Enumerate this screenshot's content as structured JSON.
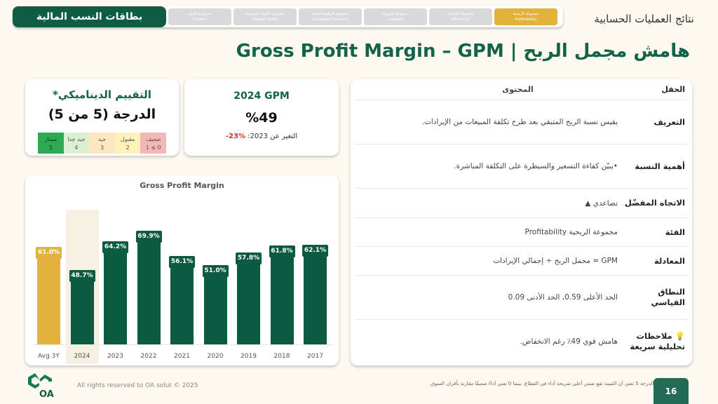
{
  "header": {
    "brand_label": "بطاقات النسب المالية",
    "section_label": "نتائج العمليات الحسابية",
    "tabs": [
      {
        "ar": "مجموعة النمو",
        "en": "Growth",
        "active": false
      },
      {
        "ar": "مجموعة القيمة السوقية",
        "en": "Market Value",
        "active": false
      },
      {
        "ar": "مجموعة الرافعة المالية",
        "en": "Leverage Financial",
        "active": false
      },
      {
        "ar": "مجموعة السيولة",
        "en": "Liquidity",
        "active": false
      },
      {
        "ar": "مجموعة الكفاءة",
        "en": "Efficiency",
        "active": false
      },
      {
        "ar": "مجموعة الربحية",
        "en": "Profitability",
        "active": true
      }
    ]
  },
  "page_title": "هامش مجمل الربح | Gross Profit Margin – GPM",
  "rating_card": {
    "title": "التقييم الديناميكي*",
    "score": "الدرجة (5 من 5)",
    "scale": [
      {
        "label": "ضعيف",
        "value": "0 ≥ 1",
        "color": "#f4b7b7"
      },
      {
        "label": "مقبول",
        "value": "2",
        "color": "#fdf3b8"
      },
      {
        "label": "جيد",
        "value": "3",
        "color": "#fde6c2"
      },
      {
        "label": "جيد جدا",
        "value": "4",
        "color": "#dcefd3"
      },
      {
        "label": "ممتاز",
        "value": "5",
        "color": "#2eaa55"
      }
    ]
  },
  "gpm_card": {
    "title": "2024 GPM",
    "value": "%49",
    "change_label": "التغير عن 2023:",
    "change_value": "-23%"
  },
  "chart_data": {
    "type": "bar",
    "title": "Gross Profit Margin",
    "categories": [
      "Avg 3Y",
      "2024",
      "2023",
      "2022",
      "2021",
      "2020",
      "2019",
      "2018",
      "2017"
    ],
    "values": [
      61.0,
      48.7,
      64.2,
      69.9,
      56.1,
      51.0,
      57.8,
      61.8,
      62.1
    ],
    "labels": [
      "61.0%",
      "48.7%",
      "64.2%",
      "69.9%",
      "56.1%",
      "51.0%",
      "57.8%",
      "61.8%",
      "62.1%"
    ],
    "colors": [
      "#e3b23c",
      "#0b5a42",
      "#0b5a42",
      "#0b5a42",
      "#0b5a42",
      "#0b5a42",
      "#0b5a42",
      "#0b5a42",
      "#0b5a42"
    ],
    "highlighted": "2024",
    "xlabel": "",
    "ylabel": "",
    "grid": false
  },
  "table": {
    "headers": {
      "field": "الحقل",
      "content": "المحتوى"
    },
    "rows": [
      {
        "field": "التعريف",
        "content": "يقيس نسبة الربح المتبقي بعد طرح تكلفة المبيعات من الإيرادات."
      },
      {
        "field": "أهمية النسبة",
        "content": "•يبيّن كفاءة التسعير والسيطرة على التكلفة المباشرة."
      },
      {
        "field": "الاتجاه المفضّل",
        "content": "تصاعدي ▲"
      },
      {
        "field": "الفئة",
        "content": "مجموعة الربحية Profitability"
      },
      {
        "field": "المعادلة",
        "content": "GPM = مجمل الربح ÷ إجمالي الإيرادات"
      },
      {
        "field": "النطاق القياسي",
        "content": "الحد الأعلى 0.59، الحد الأدنى  0.09"
      },
      {
        "field": "💡 ملاحظات تحليلية سريعة",
        "content": "هامش قوي 49٪ رغم الانخفاض."
      }
    ]
  },
  "footer": {
    "logo_text": "OA",
    "copyright": "All rights reserved to OA solut © 2025",
    "footnote": "* الدرجة 5 تعني أن القيمة تقع ضمن أعلى شريحة أداء في القطاع، بينما 0 تعني أداءً ضعيفًا مقارنة بأقران السوق.",
    "page_number": "16"
  }
}
